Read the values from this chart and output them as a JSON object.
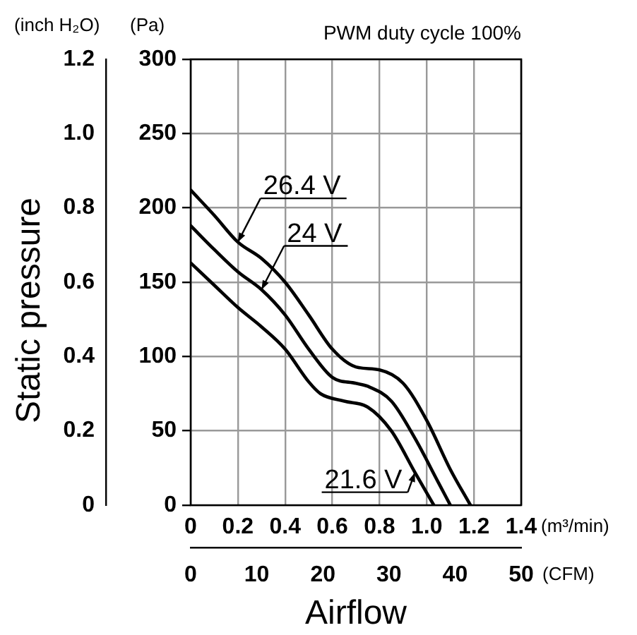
{
  "chart_data": {
    "type": "line",
    "title": "PWM duty cycle 100%",
    "xlabel": "Airflow",
    "ylabel": "Static pressure",
    "annotations": [
      "(inch H₂O)",
      "(Pa)",
      "(m³/min)",
      "(CFM)"
    ],
    "series": [
      {
        "name": "26.4 V",
        "color": "#000000",
        "axis": "y2",
        "x": [
          0,
          0.1,
          0.2,
          0.3,
          0.4,
          0.5,
          0.6,
          0.7,
          0.8,
          0.9,
          1.0,
          1.1,
          1.185
        ],
        "values": [
          212,
          195,
          177,
          166,
          150,
          128,
          105,
          93,
          91,
          82,
          57,
          24,
          0
        ]
      },
      {
        "name": "24 V",
        "color": "#000000",
        "axis": "y2",
        "x": [
          0,
          0.1,
          0.2,
          0.3,
          0.4,
          0.5,
          0.6,
          0.7,
          0.75,
          0.85,
          0.95,
          1.05,
          1.1
        ],
        "values": [
          188,
          172,
          157,
          145,
          128,
          105,
          86,
          82,
          80,
          70,
          45,
          15,
          0
        ]
      },
      {
        "name": "21.6 V",
        "color": "#000000",
        "axis": "y2",
        "x": [
          0,
          0.1,
          0.2,
          0.3,
          0.4,
          0.5,
          0.55,
          0.65,
          0.75,
          0.85,
          0.95,
          1.03
        ],
        "values": [
          163,
          148,
          133,
          120,
          105,
          83,
          75,
          70,
          66,
          50,
          22,
          0
        ]
      }
    ],
    "xlim": [
      0,
      1.4
    ],
    "xticks": [
      0,
      0.2,
      0.4,
      0.6,
      0.8,
      {
        "value": 1,
        "label": "1.0"
      },
      1.2,
      1.4
    ],
    "x2lim": [
      0,
      50
    ],
    "x2ticks": [
      0,
      10,
      20,
      30,
      40,
      50
    ],
    "ylim": [
      0,
      1.2
    ],
    "yticks": [
      0,
      0.2,
      0.4,
      0.6,
      0.8,
      {
        "value": 1,
        "label": "1.0"
      },
      1.2
    ],
    "y2lim": [
      0,
      300
    ],
    "y2ticks": [
      0,
      50,
      100,
      150,
      200,
      250,
      300
    ],
    "grid": true,
    "marker": "none",
    "line_style": "solid"
  }
}
